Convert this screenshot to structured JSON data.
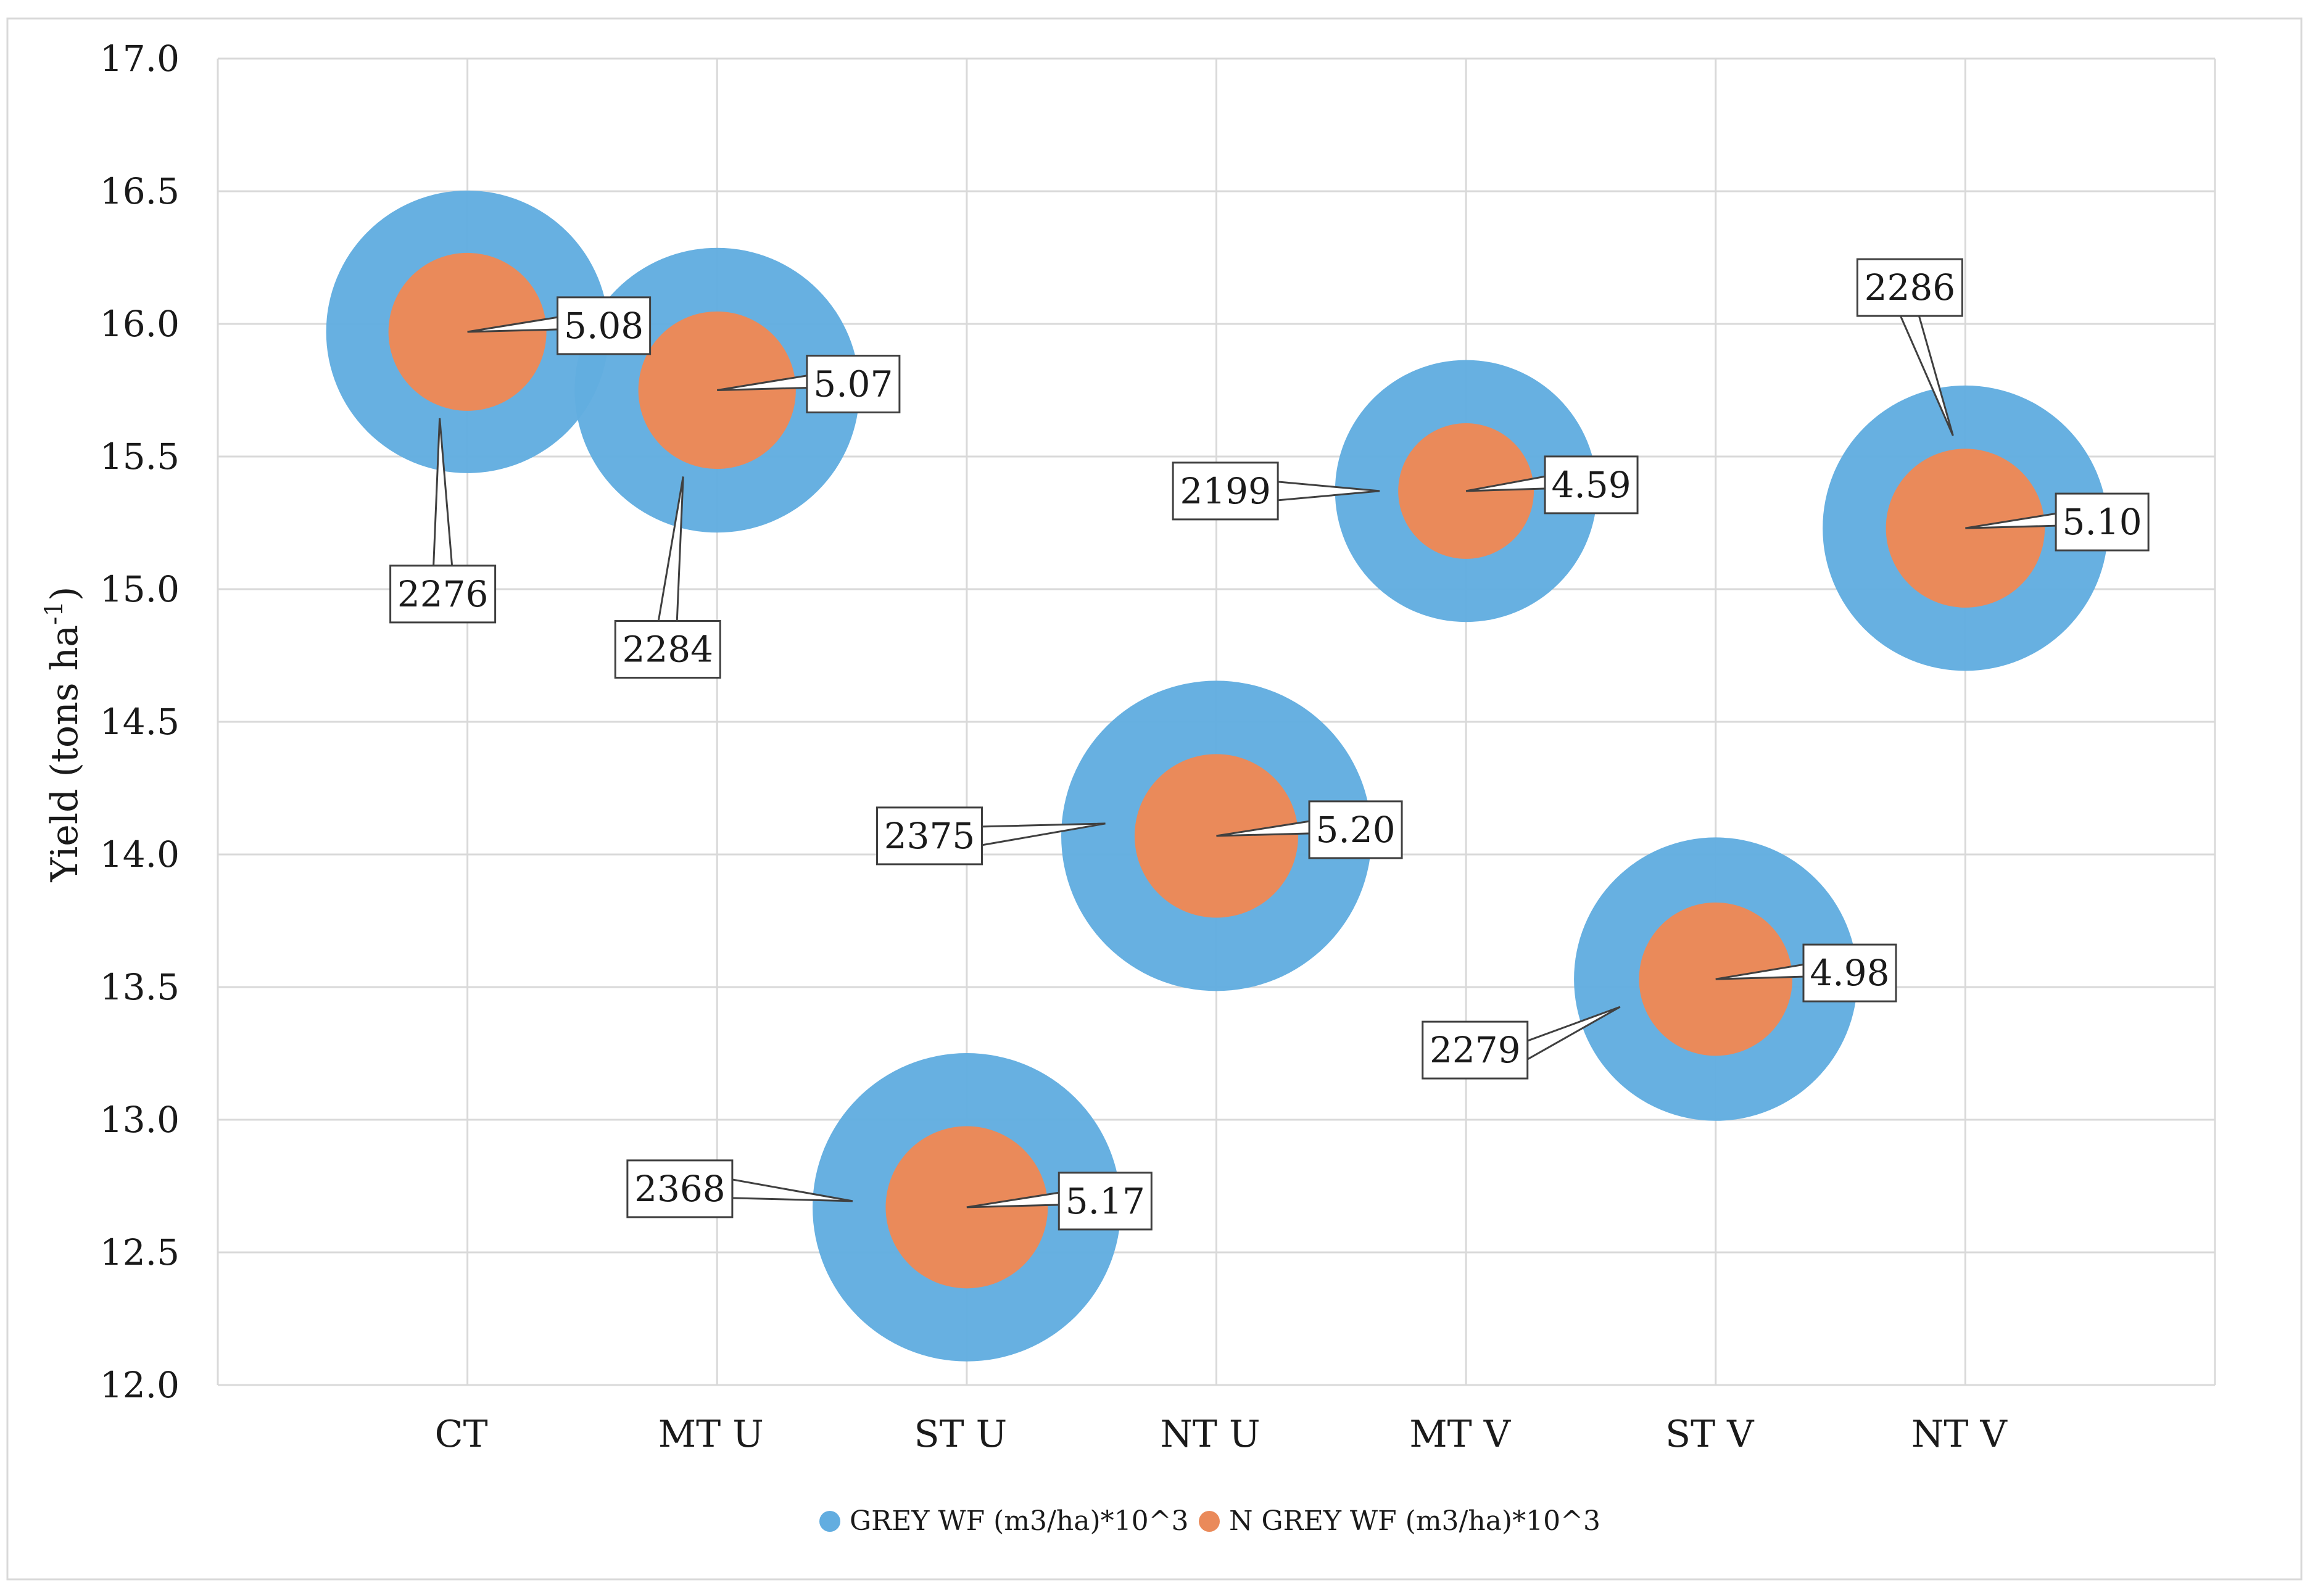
{
  "chart_data": {
    "type": "bubble",
    "title": "",
    "xlabel": "",
    "ylabel": "Yield (tons ha",
    "ylabel_superscript": "-1",
    "ylabel_suffix": ")",
    "ylim": [
      12.0,
      17.0
    ],
    "ytick_step": 0.5,
    "grid": true,
    "categories": [
      "CT",
      "MT U",
      "ST U",
      "NT U",
      "MT V",
      "ST V",
      "NT V"
    ],
    "yields": [
      15.97,
      15.75,
      12.67,
      14.07,
      15.37,
      13.53,
      15.23
    ],
    "series": [
      {
        "name": "GREY WF (m3/ha)*10^3",
        "color": "#62ade0",
        "values": [
          2276,
          2284,
          2368,
          2375,
          2199,
          2279,
          2286
        ],
        "labels": [
          "2276",
          "2284",
          "2368",
          "2375",
          "2199",
          "2279",
          "2286"
        ]
      },
      {
        "name": "N GREY WF (m3/ha)*10^3",
        "color": "#ea8a5a",
        "values": [
          5.08,
          5.07,
          5.17,
          5.2,
          4.59,
          4.98,
          5.1
        ],
        "labels": [
          "5.08",
          "5.07",
          "5.17",
          "5.20",
          "4.59",
          "4.98",
          "5.10"
        ]
      }
    ],
    "legend_position": "bottom-center"
  }
}
